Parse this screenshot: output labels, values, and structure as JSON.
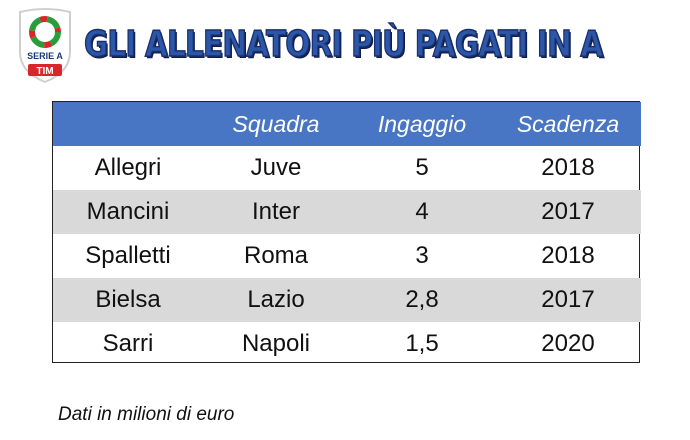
{
  "logo": {
    "line1": "SERIE A",
    "line2": "TIM"
  },
  "title": "GLI ALLENATORI PIÙ PAGATI IN A",
  "table": {
    "headers": [
      "",
      "Squadra",
      "Ingaggio",
      "Scadenza"
    ],
    "rows": [
      [
        "Allegri",
        "Juve",
        "5",
        "2018"
      ],
      [
        "Mancini",
        "Inter",
        "4",
        "2017"
      ],
      [
        "Spalletti",
        "Roma",
        "3",
        "2018"
      ],
      [
        "Bielsa",
        "Lazio",
        "2,8",
        "2017"
      ],
      [
        "Sarri",
        "Napoli",
        "1,5",
        "2020"
      ]
    ]
  },
  "note": "Dati in milioni di euro",
  "colors": {
    "header_bg": "#4876c4",
    "alt_row": "#d9d9d9",
    "title": "#2c57a8"
  }
}
